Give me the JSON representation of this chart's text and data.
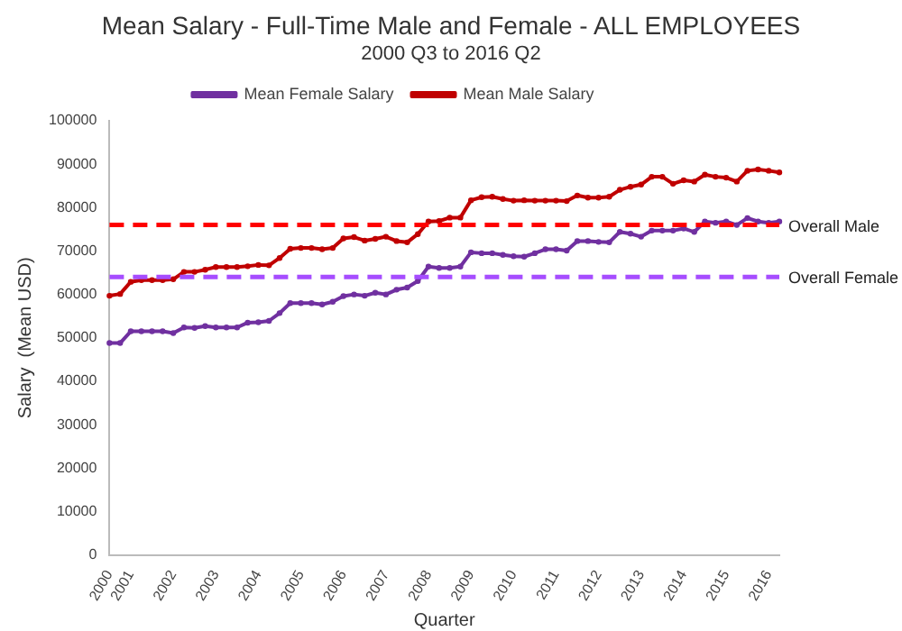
{
  "chart_data": {
    "type": "line",
    "title": "Mean Salary - Full-Time Male and Female - ALL EMPLOYEES",
    "subtitle": "2000 Q3 to 2016 Q2",
    "xlabel": "Quarter",
    "ylabel": "Salary  (Mean USD)",
    "categories": [
      "2000",
      null,
      "2001",
      null,
      null,
      null,
      "2002",
      null,
      null,
      null,
      "2003",
      null,
      null,
      null,
      "2004",
      null,
      null,
      null,
      "2005",
      null,
      null,
      null,
      "2006",
      null,
      null,
      null,
      "2007",
      null,
      null,
      null,
      "2008",
      null,
      null,
      null,
      "2009",
      null,
      null,
      null,
      "2010",
      null,
      null,
      null,
      "2011",
      null,
      null,
      null,
      "2012",
      null,
      null,
      null,
      "2013",
      null,
      null,
      null,
      "2014",
      null,
      null,
      null,
      "2015",
      null,
      null,
      null,
      "2016",
      null
    ],
    "series": [
      {
        "name": "Mean Female Salary",
        "color": "#7030a0",
        "values": [
          48800,
          48800,
          51500,
          51500,
          51500,
          51500,
          51100,
          52400,
          52300,
          52700,
          52400,
          52400,
          52400,
          53500,
          53600,
          53900,
          55700,
          58000,
          58000,
          58000,
          57700,
          58300,
          59600,
          60000,
          59700,
          60400,
          60000,
          61100,
          61600,
          63100,
          66400,
          66100,
          66100,
          66400,
          69700,
          69500,
          69500,
          69100,
          68800,
          68700,
          69500,
          70400,
          70400,
          70100,
          72300,
          72300,
          72100,
          72000,
          74400,
          74000,
          73300,
          74700,
          74700,
          74700,
          75200,
          74400,
          76800,
          76500,
          76800,
          76000,
          77600,
          76800,
          76500,
          76800
        ]
      },
      {
        "name": "Mean Male Salary",
        "color": "#c00000",
        "values": [
          59700,
          60100,
          62900,
          63300,
          63300,
          63300,
          63500,
          65200,
          65200,
          65700,
          66300,
          66300,
          66300,
          66500,
          66800,
          66700,
          68400,
          70500,
          70700,
          70700,
          70400,
          70700,
          72900,
          73200,
          72400,
          72800,
          73300,
          72300,
          72000,
          73900,
          76800,
          76900,
          77700,
          77700,
          81700,
          82400,
          82500,
          82000,
          81600,
          81700,
          81600,
          81600,
          81600,
          81500,
          82800,
          82300,
          82300,
          82500,
          84100,
          84800,
          85300,
          87100,
          87100,
          85500,
          86300,
          86000,
          87600,
          87100,
          86900,
          86000,
          88500,
          88800,
          88500,
          88100
        ]
      }
    ],
    "ylim": [
      0,
      100000
    ],
    "yticks": [
      0,
      10000,
      20000,
      30000,
      40000,
      50000,
      60000,
      70000,
      80000,
      90000,
      100000
    ],
    "ref_lines": [
      {
        "axis": "y",
        "value": 76000,
        "label": "Overall Male",
        "color": "#ff0000",
        "line_style": "dashed"
      },
      {
        "axis": "y",
        "value": 64000,
        "label": "Overall Female",
        "color": "#a64dff",
        "line_style": "dashed"
      }
    ],
    "grid": false,
    "legend": "top",
    "marker": "circle",
    "line_style": "solid"
  }
}
